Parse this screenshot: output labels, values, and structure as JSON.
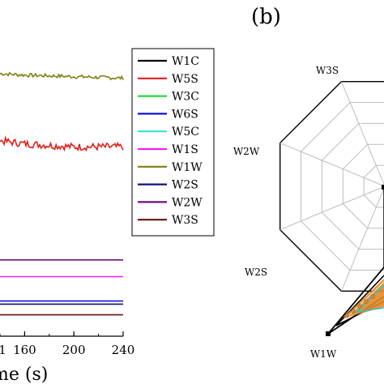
{
  "chart_data": [
    {
      "type": "line",
      "panel": "",
      "xlabel": "me (s)",
      "ylabel": "",
      "x_ticks": [
        "160",
        "200",
        "240"
      ],
      "x_tick_partial": "1",
      "xlim": [
        140,
        240
      ],
      "ylim": [
        0,
        100
      ],
      "legend_position": "right",
      "legend": [
        {
          "name": "W1C",
          "color": "#000000"
        },
        {
          "name": "W5S",
          "color": "#e0201b"
        },
        {
          "name": "W3C",
          "color": "#22d63a"
        },
        {
          "name": "W6S",
          "color": "#1010d8"
        },
        {
          "name": "W5C",
          "color": "#38e0d8"
        },
        {
          "name": "W1S",
          "color": "#f020f0"
        },
        {
          "name": "W1W",
          "color": "#7f7f10"
        },
        {
          "name": "W2S",
          "color": "#101080"
        },
        {
          "name": "W2W",
          "color": "#6a1080"
        },
        {
          "name": "W3S",
          "color": "#6a1010"
        }
      ],
      "series": [
        {
          "name": "W1W",
          "color": "#7f7f10",
          "noise": 0.6,
          "x": [
            140,
            160,
            200,
            240
          ],
          "values": [
            86,
            85.5,
            85,
            84.5
          ]
        },
        {
          "name": "W5S",
          "color": "#e0201b",
          "noise": 1.2,
          "x": [
            140,
            160,
            200,
            240
          ],
          "values": [
            64,
            63,
            62,
            62
          ]
        },
        {
          "name": "W2W",
          "color": "#6a1080",
          "noise": 0,
          "x": [
            140,
            240
          ],
          "values": [
            25,
            25
          ]
        },
        {
          "name": "W1S",
          "color": "#f020f0",
          "noise": 0,
          "x": [
            140,
            240
          ],
          "values": [
            19.5,
            19.5
          ]
        },
        {
          "name": "W6S",
          "color": "#1010d8",
          "noise": 0,
          "x": [
            140,
            240
          ],
          "values": [
            11.5,
            11.5
          ]
        },
        {
          "name": "W2S",
          "color": "#101080",
          "noise": 0,
          "x": [
            140,
            240
          ],
          "values": [
            10.5,
            10.5
          ]
        },
        {
          "name": "W3S",
          "color": "#6a1010",
          "noise": 0,
          "x": [
            140,
            240
          ],
          "values": [
            7,
            7
          ]
        }
      ]
    },
    {
      "type": "radar",
      "panel": "(b)",
      "axes": [
        "W3S",
        "W2W",
        "W2S",
        "W1W"
      ],
      "ring_count": 5,
      "grid": true,
      "point_color": "#000000",
      "orange_color": "#e08a2a",
      "teal_color": "#38c0c0"
    }
  ]
}
